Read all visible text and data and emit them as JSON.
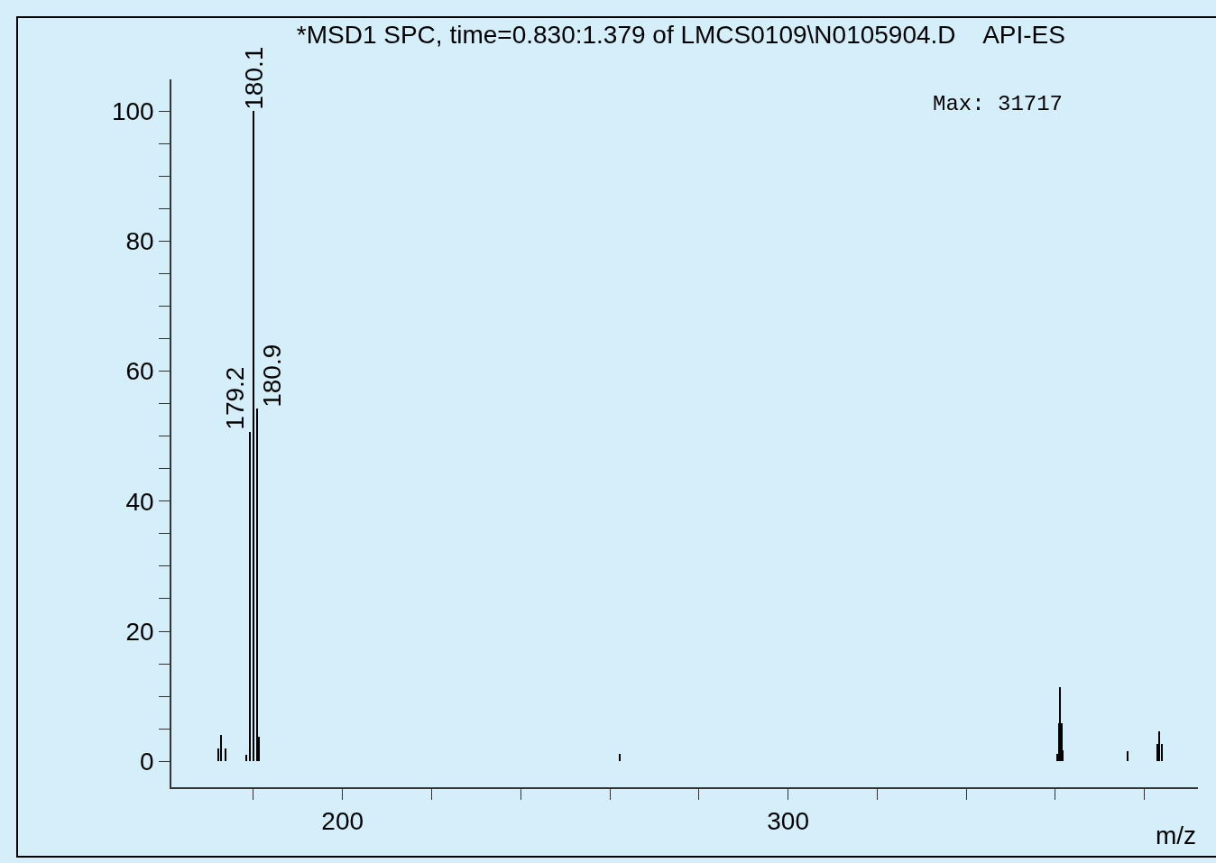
{
  "chart_data": {
    "type": "bar",
    "title": "*MSD1 SPC, time=0.830:1.379 of LMCS0109\\N0105904.D    API-ES",
    "xlabel": "m/z",
    "annotations": [
      "Max: 31717",
      {
        "text": "179.2",
        "x": 179.2,
        "y": 50.7
      },
      {
        "text": "180.1",
        "x": 180.1,
        "y": 100
      },
      {
        "text": "180.9",
        "x": 180.9,
        "y": 54.2
      }
    ],
    "x": [
      172.2,
      172.8,
      173.8,
      178.5,
      179.2,
      180.1,
      180.9,
      181.3,
      262.2,
      360.5,
      360.8,
      361.1,
      361.4,
      361.7,
      376.3,
      382.9,
      383.3,
      383.9
    ],
    "values": [
      2,
      4,
      2,
      1,
      50.7,
      100,
      54.2,
      3.7,
      1.2,
      1.1,
      5.9,
      11.4,
      5.9,
      1.7,
      1.5,
      2.6,
      4.6,
      2.7
    ],
    "color": "#000000",
    "xlim": [
      161.6,
      392
    ],
    "xticks": [
      {
        "value": 180,
        "label": null
      },
      200,
      {
        "value": 220,
        "label": null
      },
      {
        "value": 240,
        "label": null
      },
      {
        "value": 260,
        "label": null
      },
      {
        "value": 280,
        "label": null
      },
      300,
      {
        "value": 320,
        "label": null
      },
      {
        "value": 340,
        "label": null
      },
      {
        "value": 360,
        "label": null
      },
      {
        "value": 380,
        "label": null
      }
    ],
    "ylim": [
      -4,
      104.9
    ],
    "yticks": [
      0,
      {
        "value": 5,
        "label": null
      },
      {
        "value": 10,
        "label": null
      },
      {
        "value": 15,
        "label": null
      },
      20,
      {
        "value": 25,
        "label": null
      },
      {
        "value": 30,
        "label": null
      },
      {
        "value": 35,
        "label": null
      },
      40,
      {
        "value": 45,
        "label": null
      },
      {
        "value": 50,
        "label": null
      },
      {
        "value": 55,
        "label": null
      },
      60,
      {
        "value": 65,
        "label": null
      },
      {
        "value": 70,
        "label": null
      },
      {
        "value": 75,
        "label": null
      },
      80,
      {
        "value": 85,
        "label": null
      },
      {
        "value": 90,
        "label": null
      },
      {
        "value": 95,
        "label": null
      },
      100
    ],
    "grid": false
  }
}
